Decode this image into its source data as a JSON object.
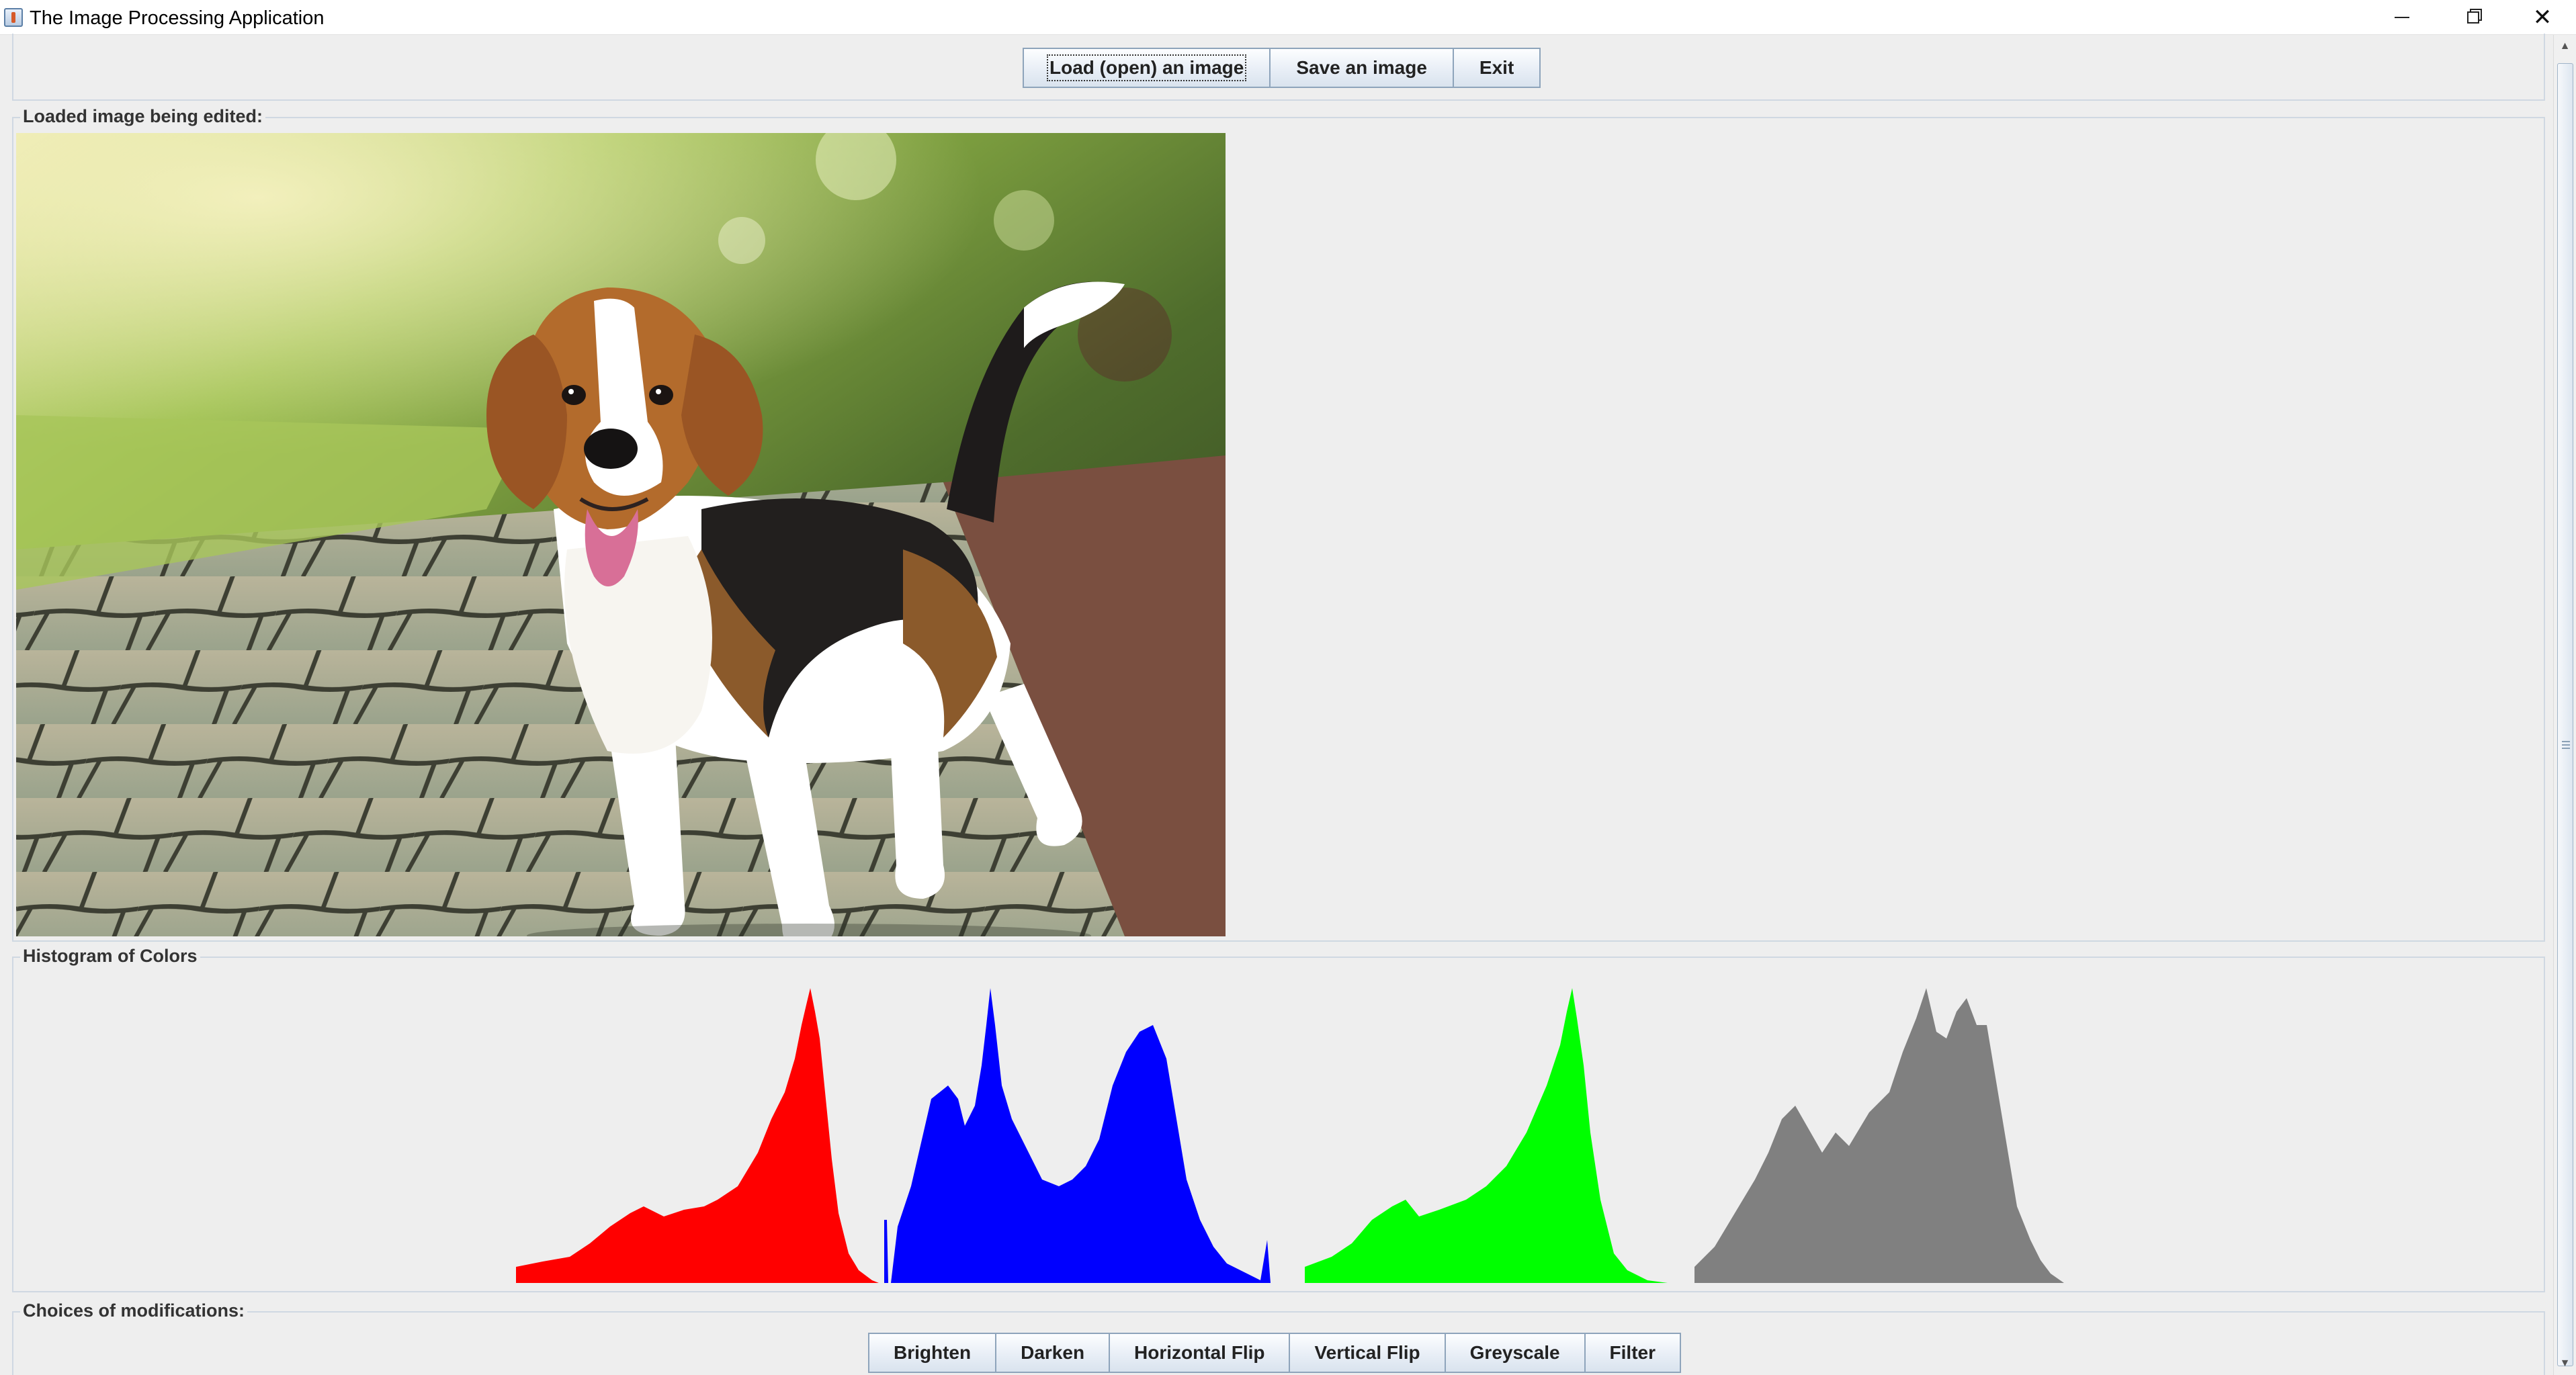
{
  "window": {
    "title": "The Image Processing Application",
    "minimize_glyph": "–",
    "maximize_glyph": "▢",
    "close_glyph": "✕"
  },
  "file_actions": {
    "load_label": "Load (open) an image",
    "save_label": "Save an image",
    "exit_label": "Exit"
  },
  "image_panel": {
    "legend": "Loaded image being edited:",
    "image_subject": "beagle puppy standing on a paved stone path"
  },
  "histogram_panel": {
    "legend": "Histogram of Colors",
    "channels": [
      {
        "channel": "red",
        "color": "#ff0000"
      },
      {
        "channel": "blue",
        "color": "#0000ff"
      },
      {
        "channel": "green",
        "color": "#00ff00"
      },
      {
        "channel": "intensity",
        "color": "#808080"
      }
    ]
  },
  "modifications_panel": {
    "legend": "Choices of modifications:",
    "buttons": [
      "Brighten",
      "Darken",
      "Horizontal Flip",
      "Vertical Flip",
      "Greyscale",
      "Filter"
    ]
  },
  "scrollbar": {
    "up_glyph": "▲",
    "down_glyph": "▼"
  }
}
